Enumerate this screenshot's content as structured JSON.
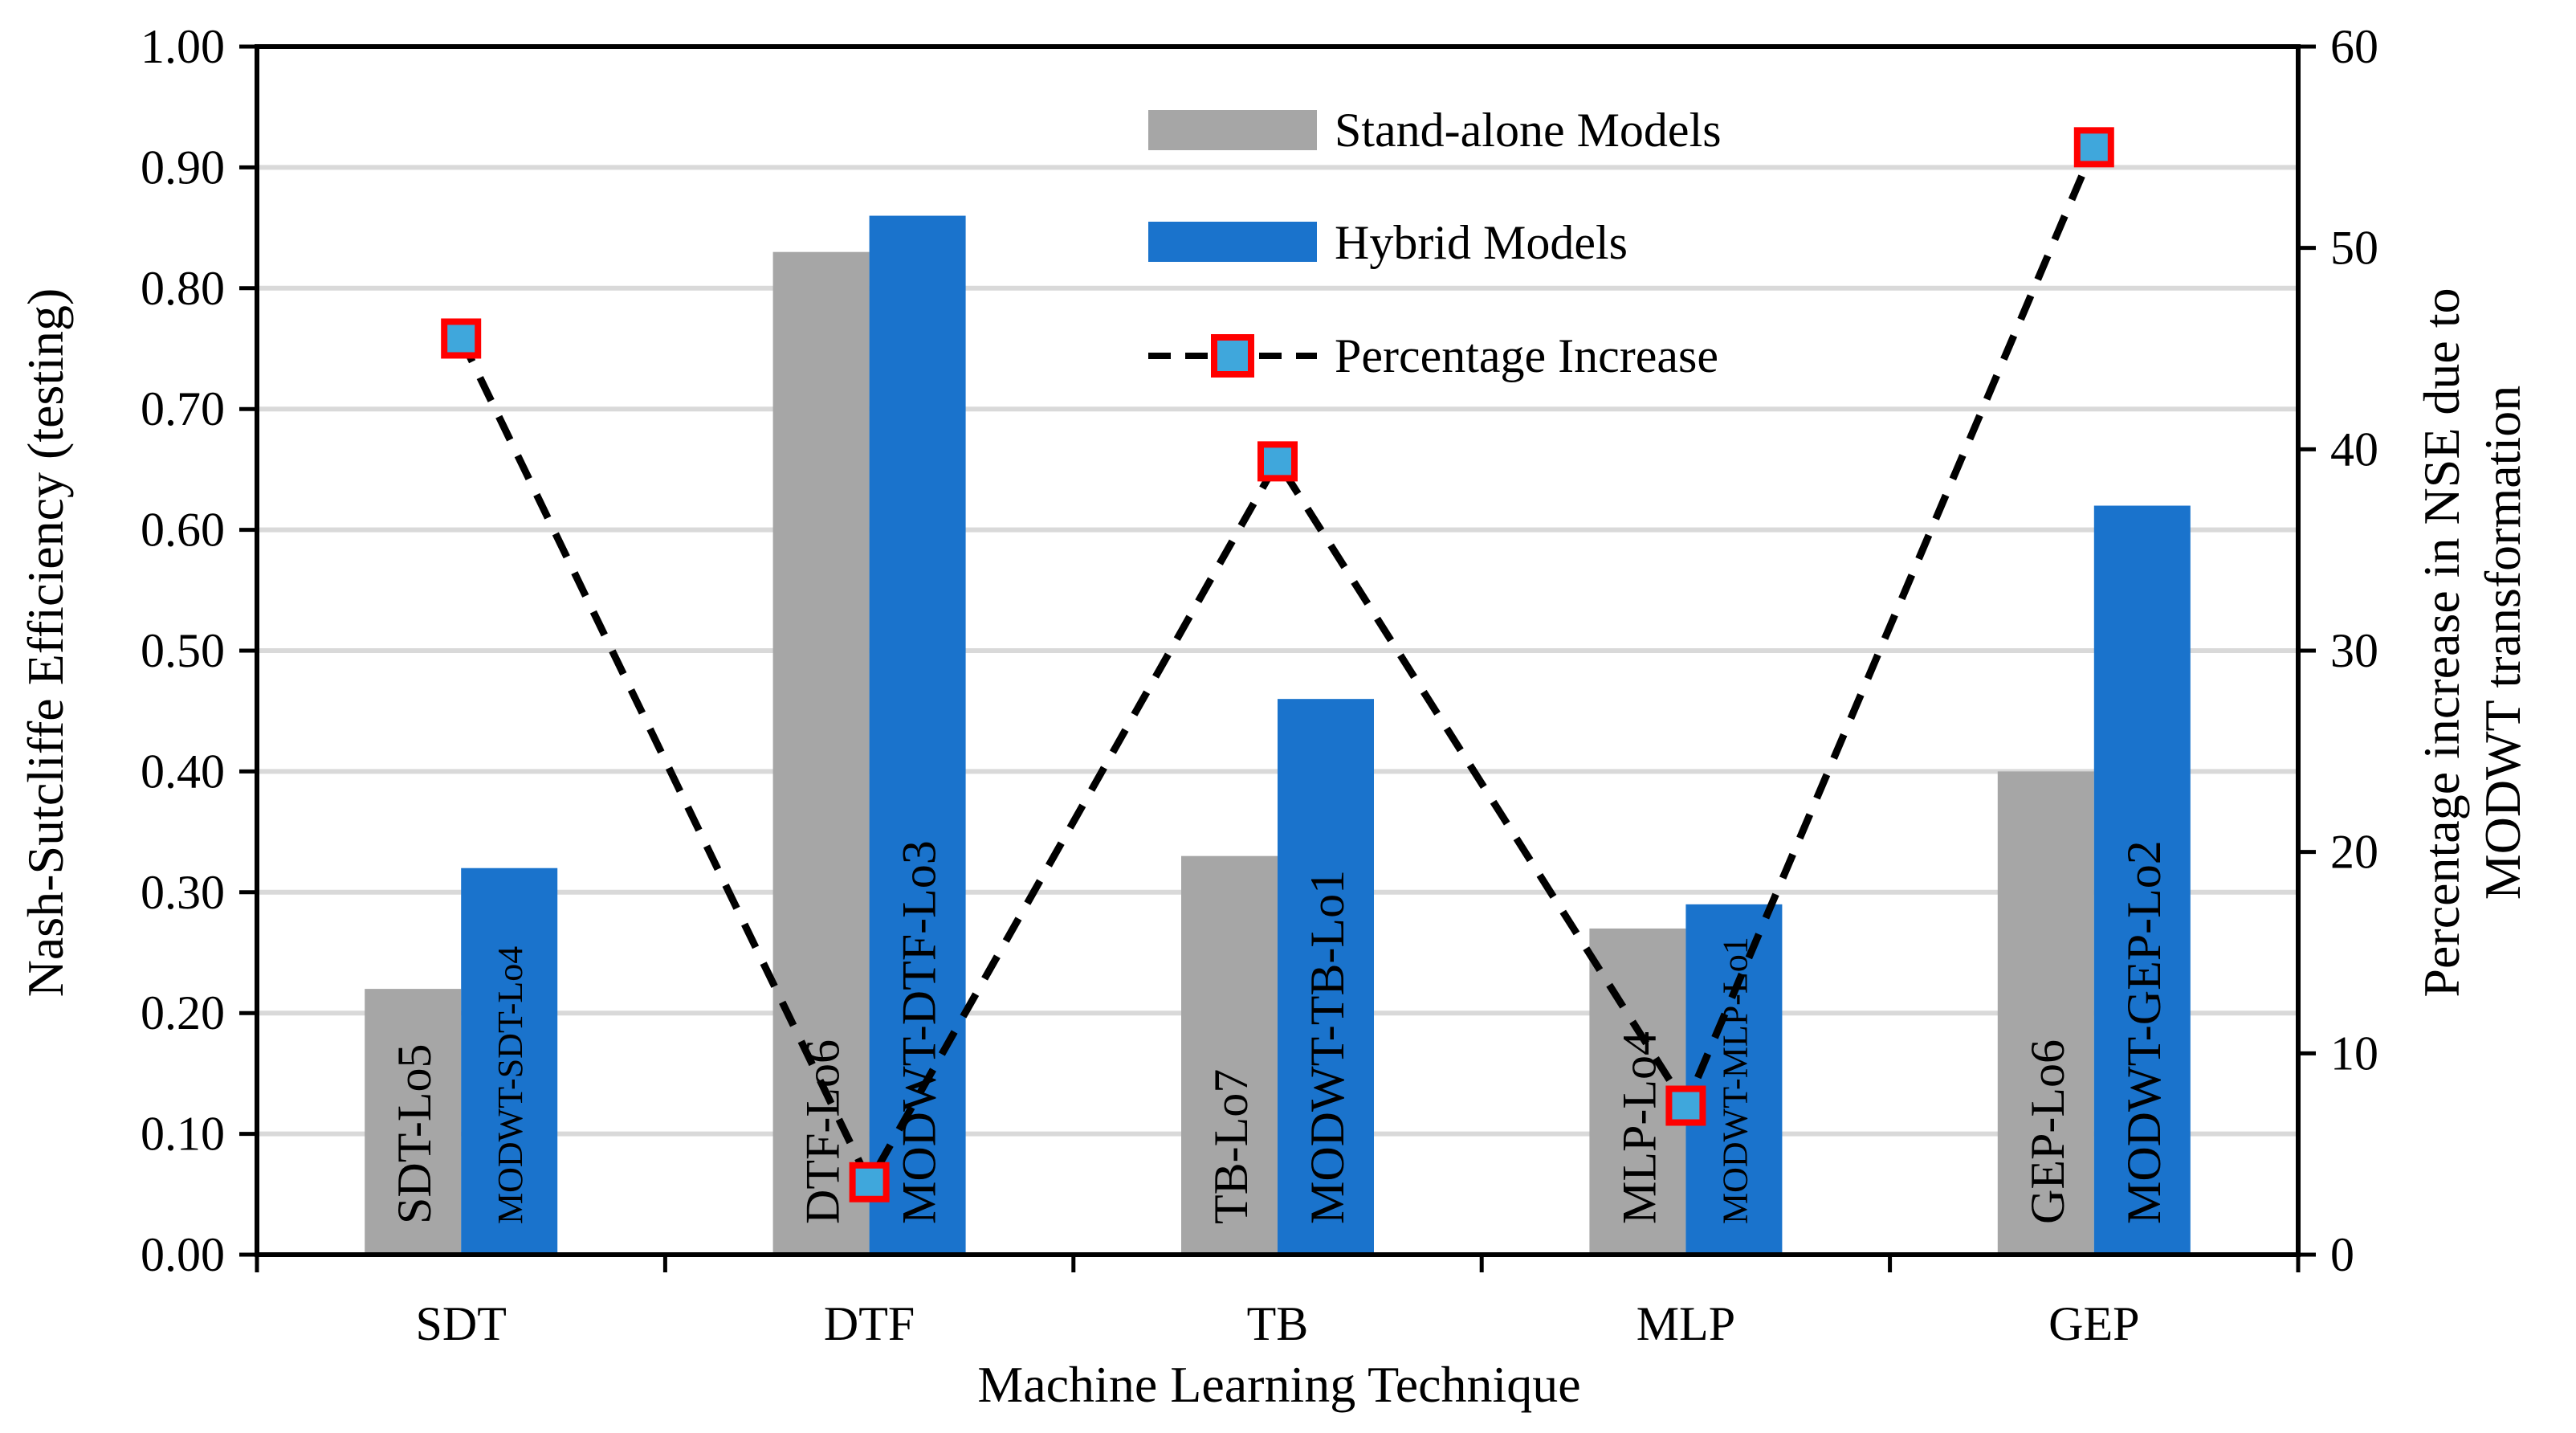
{
  "chart_data": {
    "type": "bar",
    "xlabel": "Machine Learning Technique",
    "ylabel": "Nash-Sutcliffe Efficiency (testing)",
    "y2label_lines": [
      "Percentage increase in NSE due to",
      "MODWT transformation"
    ],
    "ylim": [
      0,
      1.0
    ],
    "y_ticks": [
      "0.00",
      "0.10",
      "0.20",
      "0.30",
      "0.40",
      "0.50",
      "0.60",
      "0.70",
      "0.80",
      "0.90",
      "1.00"
    ],
    "y2lim": [
      0,
      60
    ],
    "y2_ticks": [
      "0",
      "10",
      "20",
      "30",
      "40",
      "50",
      "60"
    ],
    "grid": true,
    "categories": [
      "SDT",
      "DTF",
      "TB",
      "MLP",
      "GEP"
    ],
    "series": [
      {
        "name": "Stand-alone Models",
        "kind": "bar",
        "color": "#a6a6a6",
        "values": [
          0.22,
          0.83,
          0.33,
          0.27,
          0.4
        ],
        "labels": [
          "SDT-Lo5",
          "DTF-Lo6",
          "TB-Lo7",
          "MLP-Lo4",
          "GEP-Lo6"
        ]
      },
      {
        "name": "Hybrid Models",
        "kind": "bar",
        "color": "#1a73cc",
        "values": [
          0.32,
          0.86,
          0.46,
          0.29,
          0.62
        ],
        "labels": [
          "MODWT-SDT-Lo4",
          "MODWT-DTF-Lo3",
          "MODWT-TB-Lo1",
          "MODWT-MLP-Lo1",
          "MODWT-GEP-Lo2"
        ]
      },
      {
        "name": "Percentage Increase",
        "kind": "line",
        "axis": "right",
        "line_color": "#000000",
        "marker_edge": "#ff0000",
        "marker_fill": "#3fa7dc",
        "values": [
          45.5,
          3.6,
          39.4,
          7.4,
          55.0
        ]
      }
    ],
    "legend_position": "top-center"
  }
}
